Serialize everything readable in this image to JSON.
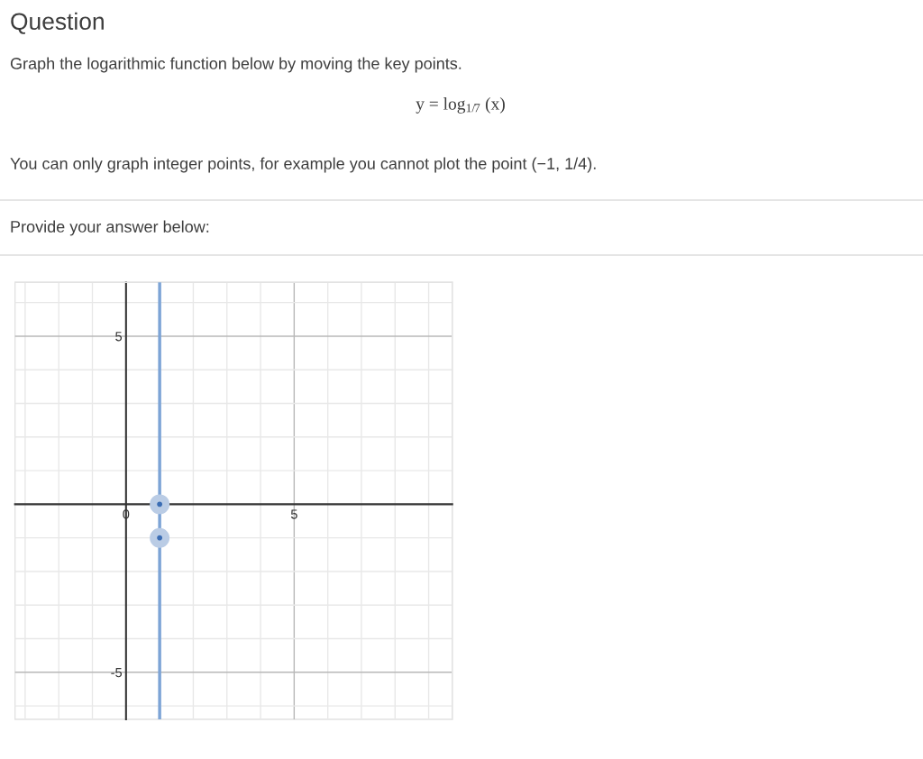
{
  "chart_data": {
    "type": "scatter",
    "title": "Question",
    "subtitle": "Graph the logarithmic function below by moving the key points.",
    "annotations": [
      "y = log$_{1/7}$ (x)",
      "You can only graph integer points, for example you cannot plot the point (−1, 1/4).",
      "Provide your answer below:"
    ],
    "x": [
      1,
      1
    ],
    "values": [
      0,
      -1
    ],
    "color": "#3b6db4",
    "marker": "circle",
    "xlim": [
      -3.3,
      9.7
    ],
    "ylim": [
      -6.4,
      6.6
    ],
    "xticks": [
      {
        "value": -3,
        "label": null
      },
      {
        "value": -2,
        "label": null
      },
      {
        "value": -1,
        "label": null
      },
      0,
      {
        "value": 1,
        "label": null
      },
      {
        "value": 2,
        "label": null
      },
      {
        "value": 3,
        "label": null
      },
      {
        "value": 4,
        "label": null
      },
      5,
      {
        "value": 6,
        "label": null
      },
      {
        "value": 7,
        "label": null
      },
      {
        "value": 8,
        "label": null
      },
      {
        "value": 9,
        "label": null
      }
    ],
    "yticks": [
      {
        "value": -6,
        "label": null
      },
      -5,
      {
        "value": -4,
        "label": null
      },
      {
        "value": -3,
        "label": null
      },
      {
        "value": -2,
        "label": null
      },
      {
        "value": -1,
        "label": null
      },
      {
        "value": 0,
        "label": null
      },
      {
        "value": 1,
        "label": null
      },
      {
        "value": 2,
        "label": null
      },
      {
        "value": 3,
        "label": null
      },
      {
        "value": 4,
        "label": null
      },
      5,
      {
        "value": 6,
        "label": null
      }
    ],
    "grid": true,
    "ref_lines": [
      {
        "axis": "x",
        "value": 1,
        "color": "#7da4d6"
      }
    ]
  }
}
